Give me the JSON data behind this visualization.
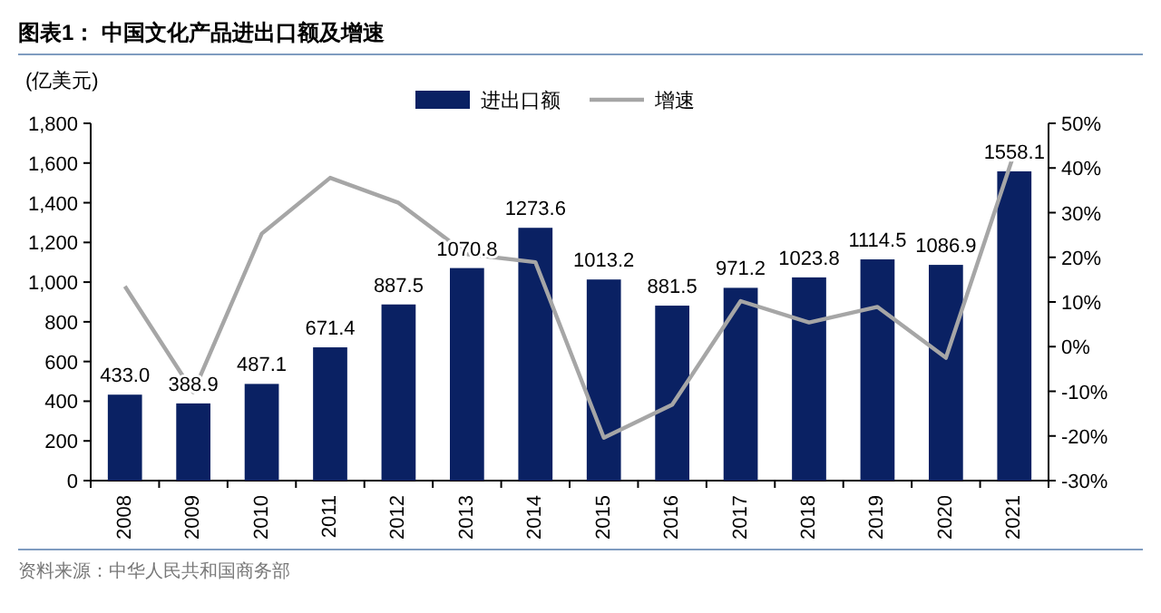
{
  "chart_data": {
    "type": "bar",
    "title": "图表1： 中国文化产品进出口额及增速",
    "ylabel": "(亿美元)",
    "categories": [
      "2008",
      "2009",
      "2010",
      "2011",
      "2012",
      "2013",
      "2014",
      "2015",
      "2016",
      "2017",
      "2018",
      "2019",
      "2020",
      "2021"
    ],
    "series": [
      {
        "name": "进出口额",
        "color": "#0a2163",
        "values": [
          433.0,
          388.9,
          487.1,
          671.4,
          887.5,
          1070.8,
          1273.6,
          1013.2,
          881.5,
          971.2,
          1023.8,
          1114.5,
          1086.9,
          1558.1
        ],
        "value_labels": [
          "433.0",
          "388.9",
          "487.1",
          "671.4",
          "887.5",
          "1070.8",
          "1273.6",
          "1013.2",
          "881.5",
          "971.2",
          "1023.8",
          "1114.5",
          "1086.9",
          "1558.1"
        ]
      },
      {
        "name": "增速",
        "type": "line",
        "axis": "y2",
        "color": "#a6a6a6",
        "values": [
          13.5,
          -10.2,
          25.3,
          37.8,
          32.2,
          20.7,
          18.9,
          -20.4,
          -13.0,
          10.2,
          5.4,
          8.9,
          -2.5,
          43.4
        ]
      }
    ],
    "ylim": [
      0,
      1800
    ],
    "yticks": [
      0,
      200,
      400,
      600,
      800,
      {
        "value": 1000,
        "label": "1,000"
      },
      {
        "value": 1200,
        "label": "1,200"
      },
      {
        "value": 1400,
        "label": "1,400"
      },
      {
        "value": 1600,
        "label": "1,600"
      },
      {
        "value": 1800,
        "label": "1,800"
      }
    ],
    "y2lim": [
      -30,
      50
    ],
    "y2ticks": [
      {
        "value": -30,
        "label": "-30%"
      },
      {
        "value": -20,
        "label": "-20%"
      },
      {
        "value": -10,
        "label": "-10%"
      },
      {
        "value": 0,
        "label": "0%"
      },
      {
        "value": 10,
        "label": "10%"
      },
      {
        "value": 20,
        "label": "20%"
      },
      {
        "value": 30,
        "label": "30%"
      },
      {
        "value": 40,
        "label": "40%"
      },
      {
        "value": 50,
        "label": "50%"
      }
    ],
    "legend": "top",
    "grid": false,
    "marker": "none",
    "line_style": "solid",
    "annotations": [
      "资料来源：中华人民共和国商务部"
    ]
  }
}
